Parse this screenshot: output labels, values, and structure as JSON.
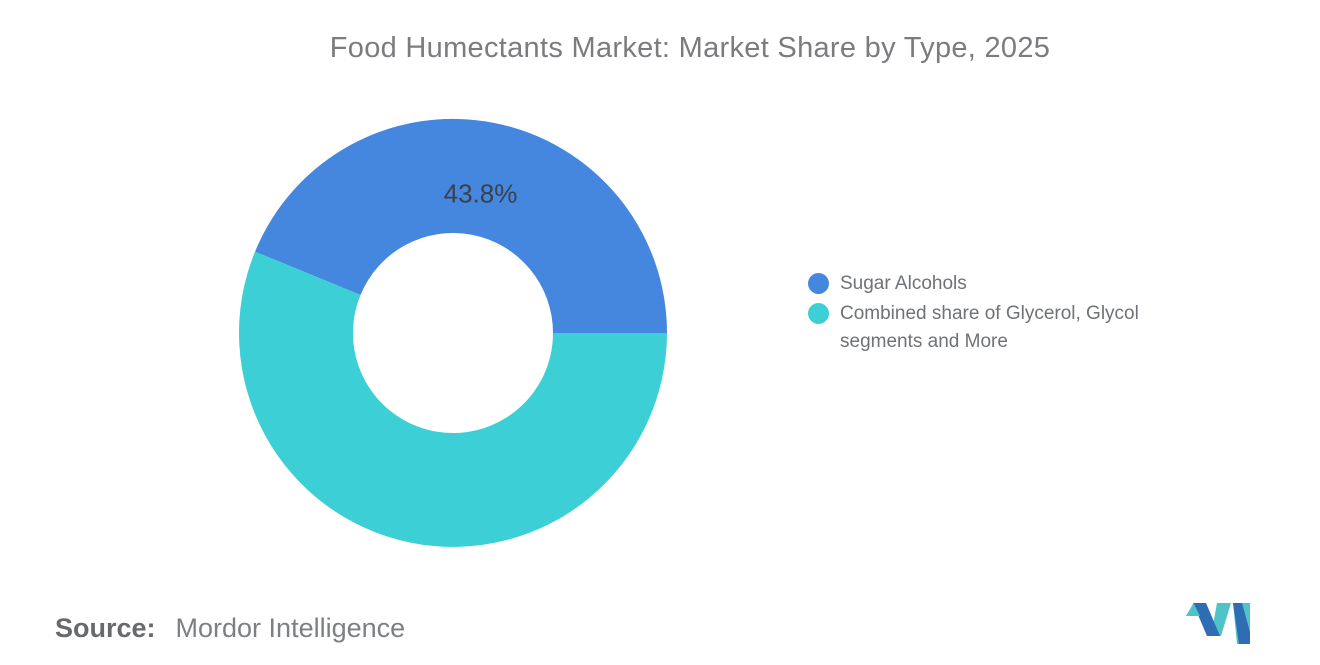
{
  "title": "Food Humectants Market: Market Share by Type, 2025",
  "chart_data": {
    "type": "pie",
    "subtype": "donut",
    "title": "Food Humectants Market: Market Share by Type, 2025",
    "hole_radius_ratio": 0.467,
    "legend_position": "right",
    "segments": [
      {
        "label": "Sugar Alcohols",
        "value": 43.8,
        "data_label": "43.8%",
        "color": "#4587df"
      },
      {
        "label": "Combined share of Glycerol, Glycol segments and More",
        "value": 56.2,
        "data_label": null,
        "color": "#3dcfd6"
      }
    ]
  },
  "source": {
    "label": "Source:",
    "value": "Mordor Intelligence"
  },
  "logo": {
    "name": "Mordor Intelligence",
    "colors": {
      "blue": "#2e6cb3",
      "teal": "#4ec4c9"
    }
  },
  "colors": {
    "background": "#ffffff",
    "title_text": "#7a7c7f",
    "legend_text": "#6f7276",
    "data_label_text": "#3b4046",
    "source_text": "#7d8082"
  }
}
